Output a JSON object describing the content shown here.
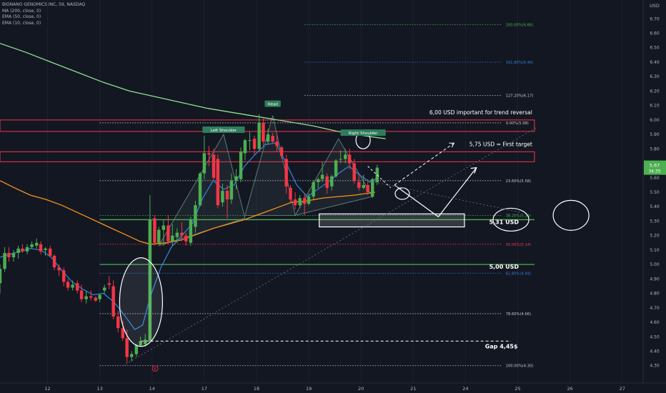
{
  "header": {
    "symbol_line": "BIONANO GENOMICS INC, 59, NASDAQ",
    "indicators": [
      "MA (200, close, 0)",
      "EMA (50, close, 0)",
      "EMA (10, close, 0)"
    ],
    "currency": "USD",
    "last_price": "5.67",
    "countdown": "34:35"
  },
  "colors": {
    "background": "#131722",
    "up": "#4caf50",
    "down": "#f23645",
    "ma200": "#8ee08f",
    "ema50": "#f7931a",
    "ema10": "#2f7fd8",
    "support_line": "#4caf50",
    "resistance_box": "#f23645",
    "fib_line": "#c9c9c9"
  },
  "chart_data": {
    "type": "candlestick",
    "x_ticks": [
      {
        "label": "12",
        "x": 11.53
      },
      {
        "label": "13",
        "x": 12.53
      },
      {
        "label": "14",
        "x": 13.53
      },
      {
        "label": "17",
        "x": 14.53
      },
      {
        "label": "18",
        "x": 15.53
      },
      {
        "label": "19",
        "x": 16.53
      },
      {
        "label": "20",
        "x": 17.53
      },
      {
        "label": "21",
        "x": 18.53
      },
      {
        "label": "24",
        "x": 19.53
      },
      {
        "label": "25",
        "x": 20.53
      },
      {
        "label": "26",
        "x": 21.53
      },
      {
        "label": "27",
        "x": 22.53
      }
    ],
    "xlim": [
      10.62,
      22.93
    ],
    "ylim": [
      4.18,
      6.83
    ],
    "y_ticks": [
      "4.30",
      "4.40",
      "4.50",
      "4.60",
      "4.70",
      "4.80",
      "4.90",
      "5.00",
      "5.10",
      "5.20",
      "5.30",
      "5.40",
      "5.50",
      "5.60",
      "5.70",
      "5.80",
      "5.90",
      "6.00",
      "6.10",
      "6.20",
      "6.30",
      "6.40",
      "6.50",
      "6.60",
      "6.70"
    ],
    "candles": [
      [
        10.62,
        4.87,
        5.0,
        4.8,
        4.97
      ],
      [
        10.71,
        4.97,
        5.12,
        4.95,
        5.08
      ],
      [
        10.79,
        5.08,
        5.12,
        5.02,
        5.05
      ],
      [
        10.88,
        5.05,
        5.1,
        5.02,
        5.08
      ],
      [
        10.97,
        5.08,
        5.13,
        5.04,
        5.11
      ],
      [
        11.05,
        5.11,
        5.14,
        5.08,
        5.09
      ],
      [
        11.14,
        5.09,
        5.14,
        5.07,
        5.12
      ],
      [
        11.23,
        5.12,
        5.16,
        5.11,
        5.14
      ],
      [
        11.32,
        5.13,
        5.18,
        5.11,
        5.15
      ],
      [
        11.4,
        5.14,
        5.16,
        5.07,
        5.09
      ],
      [
        11.49,
        5.1,
        5.12,
        5.06,
        5.11
      ],
      [
        11.58,
        5.11,
        5.13,
        5.05,
        5.06
      ],
      [
        11.66,
        5.06,
        5.07,
        4.96,
        4.98
      ],
      [
        11.75,
        4.98,
        5.0,
        4.92,
        4.96
      ],
      [
        11.84,
        4.96,
        4.98,
        4.85,
        4.88
      ],
      [
        11.92,
        4.88,
        4.9,
        4.82,
        4.84
      ],
      [
        12.01,
        4.84,
        4.89,
        4.82,
        4.86
      ],
      [
        12.1,
        4.87,
        4.89,
        4.8,
        4.82
      ],
      [
        12.18,
        4.82,
        4.86,
        4.74,
        4.76
      ],
      [
        12.27,
        4.76,
        4.82,
        4.73,
        4.78
      ],
      [
        12.36,
        4.78,
        4.82,
        4.75,
        4.77
      ],
      [
        12.45,
        4.77,
        4.78,
        4.74,
        4.75
      ],
      [
        12.53,
        4.76,
        4.8,
        4.74,
        4.79
      ],
      [
        12.62,
        4.82,
        4.86,
        4.8,
        4.84
      ],
      [
        12.71,
        4.87,
        4.92,
        4.83,
        4.86
      ],
      [
        12.79,
        4.85,
        4.89,
        4.62,
        4.64
      ],
      [
        12.88,
        4.64,
        4.68,
        4.53,
        4.56
      ],
      [
        12.97,
        4.56,
        4.61,
        4.47,
        4.49
      ],
      [
        13.05,
        4.49,
        4.55,
        4.32,
        4.36
      ],
      [
        13.14,
        4.36,
        4.4,
        4.33,
        4.38
      ],
      [
        13.23,
        4.38,
        4.45,
        4.36,
        4.44
      ],
      [
        13.31,
        4.44,
        4.5,
        4.43,
        4.47
      ],
      [
        13.4,
        4.45,
        4.52,
        4.43,
        4.48
      ],
      [
        13.49,
        4.47,
        5.48,
        4.46,
        5.31
      ],
      [
        13.58,
        5.32,
        5.34,
        5.13,
        5.15
      ],
      [
        13.66,
        5.15,
        5.26,
        5.14,
        5.24
      ],
      [
        13.75,
        5.24,
        5.31,
        5.13,
        5.27
      ],
      [
        13.84,
        5.27,
        5.34,
        5.14,
        5.16
      ],
      [
        13.92,
        5.16,
        5.28,
        5.13,
        5.2
      ],
      [
        14.01,
        5.19,
        5.25,
        5.15,
        5.22
      ],
      [
        14.1,
        5.22,
        5.29,
        5.16,
        5.2
      ],
      [
        14.18,
        5.2,
        5.22,
        5.13,
        5.16
      ],
      [
        14.27,
        5.15,
        5.33,
        5.13,
        5.31
      ],
      [
        14.36,
        5.26,
        5.44,
        5.22,
        5.41
      ],
      [
        14.45,
        5.41,
        5.64,
        5.4,
        5.63
      ],
      [
        14.53,
        5.63,
        5.89,
        5.59,
        5.77
      ],
      [
        14.62,
        5.77,
        5.82,
        5.68,
        5.76
      ],
      [
        14.71,
        5.76,
        5.8,
        5.58,
        5.6
      ],
      [
        14.79,
        5.73,
        5.76,
        5.39,
        5.41
      ],
      [
        14.88,
        5.43,
        5.56,
        5.4,
        5.51
      ],
      [
        14.97,
        5.51,
        5.55,
        5.32,
        5.45
      ],
      [
        15.05,
        5.45,
        5.63,
        5.42,
        5.58
      ],
      [
        15.14,
        5.58,
        5.66,
        5.52,
        5.61
      ],
      [
        15.23,
        5.59,
        5.81,
        5.57,
        5.78
      ],
      [
        15.31,
        5.77,
        5.87,
        5.72,
        5.86
      ],
      [
        15.4,
        5.86,
        5.92,
        5.79,
        5.86
      ],
      [
        15.49,
        5.87,
        5.89,
        5.76,
        5.8
      ],
      [
        15.58,
        5.8,
        6.04,
        5.78,
        5.98
      ],
      [
        15.66,
        5.98,
        6.01,
        5.82,
        5.85
      ],
      [
        15.75,
        5.85,
        5.94,
        5.83,
        5.9
      ],
      [
        15.84,
        5.89,
        5.91,
        5.84,
        5.85
      ],
      [
        15.92,
        5.85,
        5.91,
        5.78,
        5.82
      ],
      [
        16.01,
        5.81,
        5.82,
        5.73,
        5.75
      ],
      [
        16.1,
        5.73,
        5.76,
        5.49,
        5.54
      ],
      [
        16.18,
        5.53,
        5.55,
        5.43,
        5.45
      ],
      [
        16.27,
        5.45,
        5.5,
        5.38,
        5.41
      ],
      [
        16.36,
        5.41,
        5.48,
        5.39,
        5.46
      ],
      [
        16.45,
        5.46,
        5.49,
        5.34,
        5.42
      ],
      [
        16.53,
        5.42,
        5.49,
        5.41,
        5.47
      ],
      [
        16.62,
        5.47,
        5.58,
        5.45,
        5.57
      ],
      [
        16.71,
        5.57,
        5.6,
        5.53,
        5.59
      ],
      [
        16.79,
        5.59,
        5.71,
        5.57,
        5.62
      ],
      [
        16.88,
        5.61,
        5.63,
        5.49,
        5.53
      ],
      [
        16.97,
        5.54,
        5.62,
        5.51,
        5.61
      ],
      [
        17.05,
        5.61,
        5.73,
        5.6,
        5.72
      ],
      [
        17.14,
        5.73,
        5.79,
        5.7,
        5.73
      ],
      [
        17.23,
        5.73,
        5.8,
        5.7,
        5.76
      ],
      [
        17.31,
        5.76,
        5.8,
        5.66,
        5.7
      ],
      [
        17.4,
        5.7,
        5.73,
        5.56,
        5.58
      ],
      [
        17.49,
        5.57,
        5.62,
        5.51,
        5.53
      ],
      [
        17.58,
        5.53,
        5.62,
        5.52,
        5.55
      ],
      [
        17.66,
        5.55,
        5.59,
        5.48,
        5.5
      ],
      [
        17.75,
        5.47,
        5.6,
        5.46,
        5.59
      ],
      [
        17.84,
        5.57,
        5.69,
        5.55,
        5.67
      ]
    ],
    "ma200": [
      [
        10.62,
        6.53
      ],
      [
        11.1,
        6.47
      ],
      [
        11.6,
        6.4
      ],
      [
        12.1,
        6.33
      ],
      [
        12.6,
        6.26
      ],
      [
        13.1,
        6.2
      ],
      [
        13.6,
        6.16
      ],
      [
        14.1,
        6.12
      ],
      [
        14.6,
        6.08
      ],
      [
        15.1,
        6.05
      ],
      [
        15.6,
        6.02
      ],
      [
        16.1,
        5.99
      ],
      [
        16.6,
        5.96
      ],
      [
        17.1,
        5.92
      ],
      [
        17.6,
        5.89
      ],
      [
        18.0,
        5.87
      ]
    ],
    "ema50": [
      [
        10.62,
        5.58
      ],
      [
        10.9,
        5.53
      ],
      [
        11.2,
        5.48
      ],
      [
        11.5,
        5.45
      ],
      [
        11.8,
        5.41
      ],
      [
        12.1,
        5.36
      ],
      [
        12.4,
        5.31
      ],
      [
        12.7,
        5.26
      ],
      [
        13.0,
        5.21
      ],
      [
        13.3,
        5.16
      ],
      [
        13.5,
        5.14
      ],
      [
        13.8,
        5.15
      ],
      [
        14.1,
        5.17
      ],
      [
        14.4,
        5.21
      ],
      [
        14.7,
        5.25
      ],
      [
        15.0,
        5.28
      ],
      [
        15.3,
        5.31
      ],
      [
        15.6,
        5.35
      ],
      [
        15.9,
        5.39
      ],
      [
        16.2,
        5.43
      ],
      [
        16.5,
        5.44
      ],
      [
        16.8,
        5.46
      ],
      [
        17.1,
        5.47
      ],
      [
        17.4,
        5.48
      ],
      [
        17.8,
        5.5
      ]
    ],
    "ema10": [
      [
        10.62,
        5.05
      ],
      [
        10.8,
        5.07
      ],
      [
        11.0,
        5.09
      ],
      [
        11.2,
        5.11
      ],
      [
        11.4,
        5.1
      ],
      [
        11.6,
        5.05
      ],
      [
        11.8,
        4.96
      ],
      [
        12.0,
        4.88
      ],
      [
        12.2,
        4.83
      ],
      [
        12.4,
        4.79
      ],
      [
        12.6,
        4.8
      ],
      [
        12.8,
        4.74
      ],
      [
        13.0,
        4.65
      ],
      [
        13.2,
        4.55
      ],
      [
        13.35,
        4.58
      ],
      [
        13.5,
        4.78
      ],
      [
        13.7,
        4.98
      ],
      [
        13.9,
        5.12
      ],
      [
        14.1,
        5.2
      ],
      [
        14.3,
        5.28
      ],
      [
        14.5,
        5.46
      ],
      [
        14.7,
        5.58
      ],
      [
        14.9,
        5.52
      ],
      [
        15.1,
        5.55
      ],
      [
        15.3,
        5.68
      ],
      [
        15.5,
        5.76
      ],
      [
        15.7,
        5.83
      ],
      [
        15.9,
        5.84
      ],
      [
        16.1,
        5.7
      ],
      [
        16.3,
        5.55
      ],
      [
        16.5,
        5.47
      ],
      [
        16.7,
        5.52
      ],
      [
        16.9,
        5.57
      ],
      [
        17.1,
        5.63
      ],
      [
        17.3,
        5.68
      ],
      [
        17.5,
        5.62
      ],
      [
        17.7,
        5.57
      ],
      [
        17.84,
        5.6
      ]
    ],
    "fib_levels": [
      {
        "label": "0.00%(5.98)",
        "price": 5.98,
        "color": "#c9c9c9"
      },
      {
        "label": "23.60%(5.58)",
        "price": 5.58,
        "color": "#c9c9c9"
      },
      {
        "label": "38.20%(5.34)",
        "price": 5.34,
        "color": "#4caf50"
      },
      {
        "label": "50.00%(5.14)",
        "price": 5.14,
        "color": "#f23645"
      },
      {
        "label": "61.80%(4.94)",
        "price": 4.94,
        "color": "#2f7fd8"
      },
      {
        "label": "78.60%(4.66)",
        "price": 4.66,
        "color": "#c9c9c9"
      },
      {
        "label": "100.00%(4.30)",
        "price": 4.3,
        "color": "#c9c9c9"
      },
      {
        "label": "127.20%(6.17)",
        "price": 6.17,
        "color": "#c9c9c9"
      },
      {
        "label": "161.80%(6.40)",
        "price": 6.4,
        "color": "#2f7fd8"
      },
      {
        "label": "200.00%(6.66)",
        "price": 6.66,
        "color": "#4caf50"
      }
    ],
    "annotations": {
      "trend_reversal": "6,00 USD important for trend reversal",
      "first_target": "5,75 USD = First target",
      "support_531": "5,31 USD",
      "support_500": "5,00 USD",
      "gap": "Gap 4,45$",
      "left_shoulder": "Left Shoulder",
      "head": "Head",
      "right_shoulder": "Right Shoulder",
      "e_marker": "E"
    }
  }
}
